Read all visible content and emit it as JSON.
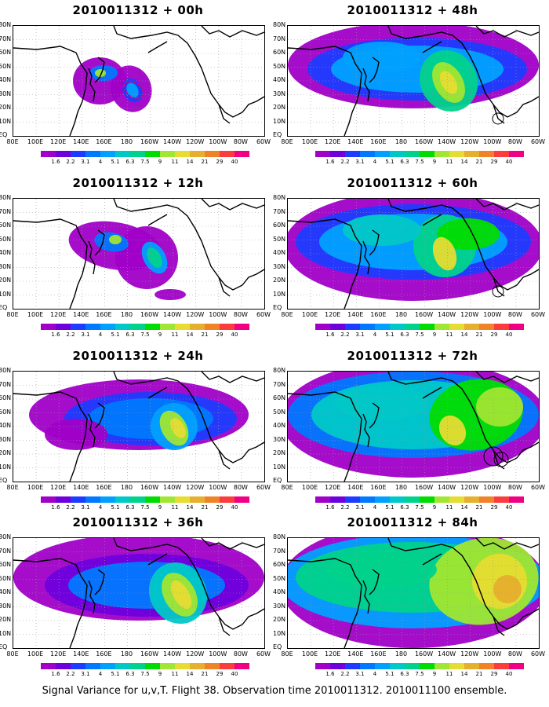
{
  "panels": [
    {
      "title": "2010011312 + 00h"
    },
    {
      "title": "2010011312 + 48h"
    },
    {
      "title": "2010011312 + 12h"
    },
    {
      "title": "2010011312 + 60h"
    },
    {
      "title": "2010011312 + 24h"
    },
    {
      "title": "2010011312 + 72h"
    },
    {
      "title": "2010011312 + 36h"
    },
    {
      "title": "2010011312 + 84h"
    }
  ],
  "x_ticks": [
    "80E",
    "100E",
    "120E",
    "140E",
    "160E",
    "180",
    "160W",
    "140W",
    "120W",
    "100W",
    "80W",
    "60W"
  ],
  "y_ticks": [
    "80N",
    "70N",
    "60N",
    "50N",
    "40N",
    "30N",
    "20N",
    "10N",
    "EQ"
  ],
  "colorbar": {
    "levels": [
      "1.6",
      "2.2",
      "3.1",
      "4",
      "5.1",
      "6.3",
      "7.5",
      "9",
      "11",
      "14",
      "21",
      "29",
      "40"
    ],
    "colors": [
      "#a000c8",
      "#6e00dc",
      "#1e3cff",
      "#0078ff",
      "#00a0ff",
      "#00c8c8",
      "#00d28c",
      "#00dc00",
      "#a0e632",
      "#e6dc32",
      "#e6af2d",
      "#f08228",
      "#fa3c3c",
      "#f00082"
    ]
  },
  "caption": "Signal Variance for u,v,T. Flight 38. Observation time 2010011312. 2010011100 ensemble."
}
